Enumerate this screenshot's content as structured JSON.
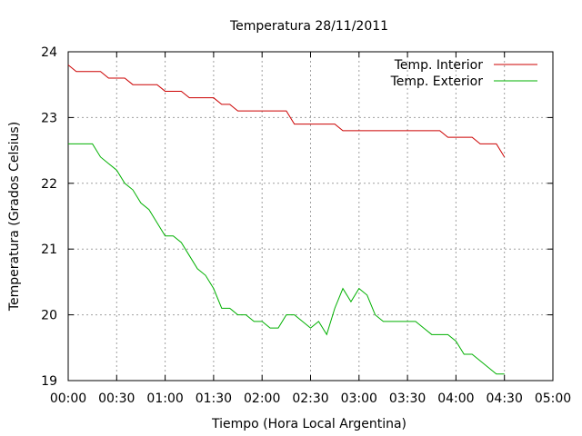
{
  "chart_data": {
    "type": "line",
    "title": "Temperatura 28/11/2011",
    "xlabel": "Tiempo (Hora Local Argentina)",
    "ylabel": "Temperatura (Grados Celsius)",
    "xlim": [
      "00:00",
      "05:00"
    ],
    "ylim": [
      19,
      24
    ],
    "x_ticks": [
      "00:00",
      "00:30",
      "01:00",
      "01:30",
      "02:00",
      "02:30",
      "03:00",
      "03:30",
      "04:00",
      "04:30",
      "05:00"
    ],
    "y_ticks": [
      "19",
      "20",
      "21",
      "22",
      "23",
      "24"
    ],
    "grid": true,
    "legend_position": "top-right",
    "series": [
      {
        "name": "Temp. Interior",
        "color": "#cc0000",
        "x": [
          "00:00",
          "00:05",
          "00:10",
          "00:15",
          "00:20",
          "00:25",
          "00:30",
          "00:35",
          "00:40",
          "00:45",
          "00:50",
          "00:55",
          "01:00",
          "01:05",
          "01:10",
          "01:15",
          "01:20",
          "01:25",
          "01:30",
          "01:35",
          "01:40",
          "01:45",
          "01:50",
          "01:55",
          "02:00",
          "02:05",
          "02:10",
          "02:15",
          "02:20",
          "02:25",
          "02:30",
          "02:35",
          "02:40",
          "02:45",
          "02:50",
          "02:55",
          "03:00",
          "03:05",
          "03:10",
          "03:15",
          "03:20",
          "03:25",
          "03:30",
          "03:35",
          "03:40",
          "03:45",
          "03:50",
          "03:55",
          "04:00",
          "04:05",
          "04:10",
          "04:15",
          "04:20",
          "04:25",
          "04:30"
        ],
        "values": [
          23.8,
          23.7,
          23.7,
          23.7,
          23.7,
          23.6,
          23.6,
          23.6,
          23.5,
          23.5,
          23.5,
          23.5,
          23.4,
          23.4,
          23.4,
          23.3,
          23.3,
          23.3,
          23.3,
          23.2,
          23.2,
          23.1,
          23.1,
          23.1,
          23.1,
          23.1,
          23.1,
          23.1,
          22.9,
          22.9,
          22.9,
          22.9,
          22.9,
          22.9,
          22.8,
          22.8,
          22.8,
          22.8,
          22.8,
          22.8,
          22.8,
          22.8,
          22.8,
          22.8,
          22.8,
          22.8,
          22.8,
          22.7,
          22.7,
          22.7,
          22.7,
          22.6,
          22.6,
          22.6,
          22.4
        ]
      },
      {
        "name": "Temp. Exterior",
        "color": "#00b000",
        "x": [
          "00:00",
          "00:05",
          "00:10",
          "00:15",
          "00:20",
          "00:25",
          "00:30",
          "00:35",
          "00:40",
          "00:45",
          "00:50",
          "00:55",
          "01:00",
          "01:05",
          "01:10",
          "01:15",
          "01:20",
          "01:25",
          "01:30",
          "01:35",
          "01:40",
          "01:45",
          "01:50",
          "01:55",
          "02:00",
          "02:05",
          "02:10",
          "02:15",
          "02:20",
          "02:25",
          "02:30",
          "02:35",
          "02:40",
          "02:45",
          "02:50",
          "02:55",
          "03:00",
          "03:05",
          "03:10",
          "03:15",
          "03:20",
          "03:25",
          "03:30",
          "03:35",
          "03:40",
          "03:45",
          "03:50",
          "03:55",
          "04:00",
          "04:05",
          "04:10",
          "04:15",
          "04:20",
          "04:25",
          "04:30"
        ],
        "values": [
          22.6,
          22.6,
          22.6,
          22.6,
          22.4,
          22.3,
          22.2,
          22.0,
          21.9,
          21.7,
          21.6,
          21.4,
          21.2,
          21.2,
          21.1,
          20.9,
          20.7,
          20.6,
          20.4,
          20.1,
          20.1,
          20.0,
          20.0,
          19.9,
          19.9,
          19.8,
          19.8,
          20.0,
          20.0,
          19.9,
          19.8,
          19.9,
          19.7,
          20.1,
          20.4,
          20.2,
          20.4,
          20.3,
          20.0,
          19.9,
          19.9,
          19.9,
          19.9,
          19.9,
          19.8,
          19.7,
          19.7,
          19.7,
          19.6,
          19.4,
          19.4,
          19.3,
          19.2,
          19.1,
          19.1
        ]
      }
    ]
  }
}
